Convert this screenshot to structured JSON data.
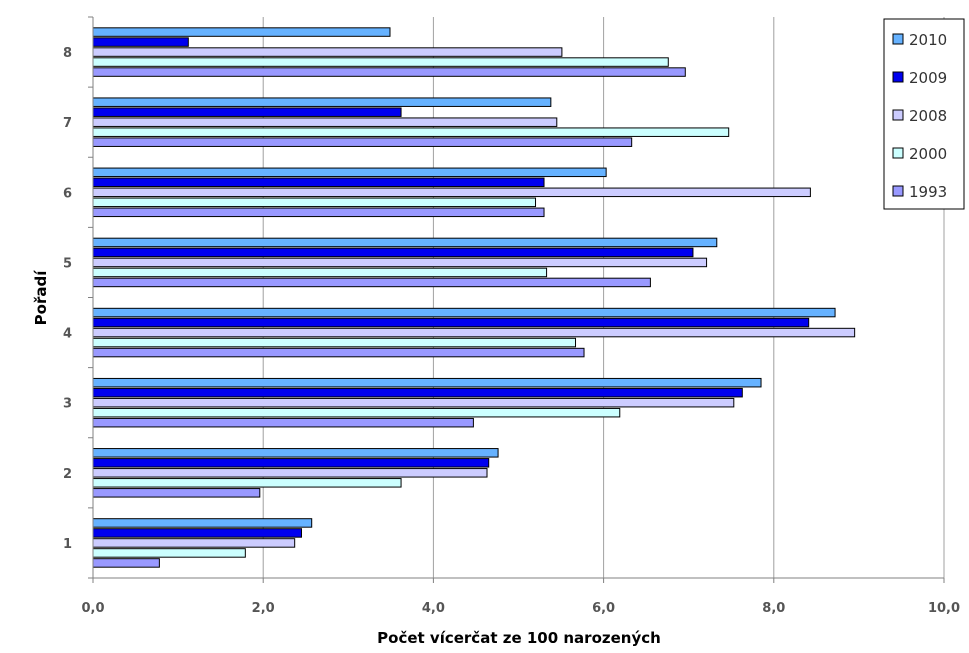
{
  "chart_data": {
    "type": "bar",
    "orientation": "horizontal",
    "title": "",
    "xlabel": "Počet vícerčat ze 100 narozených",
    "ylabel": "Pořadí",
    "xlim": [
      0,
      10
    ],
    "x_ticks": [
      "0,0",
      "2,0",
      "4,0",
      "6,0",
      "8,0",
      "10,0"
    ],
    "categories": [
      "1",
      "2",
      "3",
      "4",
      "5",
      "6",
      "7",
      "8"
    ],
    "grid": "vertical",
    "legend_position": "top-right",
    "series": [
      {
        "name": "2010",
        "color": "#66b2ff",
        "values": [
          2.57,
          4.76,
          7.85,
          8.72,
          7.33,
          6.03,
          5.38,
          3.49
        ]
      },
      {
        "name": "2009",
        "color": "#0000ee",
        "values": [
          2.45,
          4.65,
          7.63,
          8.41,
          7.05,
          5.3,
          3.62,
          1.12
        ]
      },
      {
        "name": "2008",
        "color": "#ccccff",
        "values": [
          2.37,
          4.63,
          7.53,
          8.95,
          7.21,
          8.43,
          5.45,
          5.51
        ]
      },
      {
        "name": "2000",
        "color": "#ccffff",
        "values": [
          1.79,
          3.62,
          6.19,
          5.67,
          5.33,
          5.2,
          7.47,
          6.76
        ]
      },
      {
        "name": "1993",
        "color": "#9999ff",
        "values": [
          0.78,
          1.96,
          4.47,
          5.77,
          6.55,
          5.3,
          6.33,
          6.96
        ]
      }
    ]
  }
}
